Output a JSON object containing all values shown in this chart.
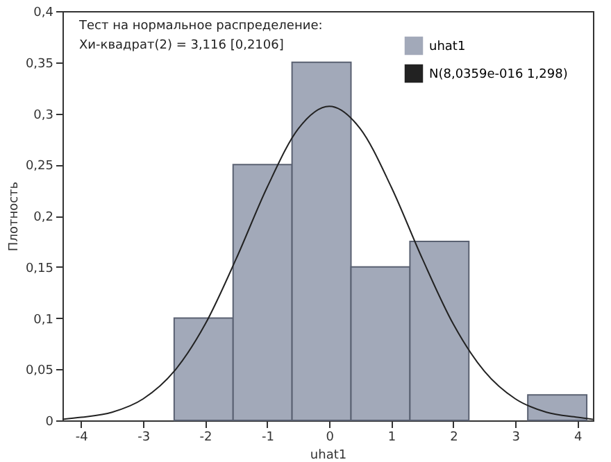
{
  "chart_data": {
    "type": "histogram",
    "xlabel": "uhat1",
    "ylabel": "Плотность",
    "annotations": [
      "Тест на нормальное распределение:",
      "Хи-квадрат(2) = 3,116 [0,2106]"
    ],
    "bins": [
      -2.5,
      -1.55,
      -0.6,
      0.35,
      1.3,
      2.25,
      3.2,
      4.15
    ],
    "series": [
      {
        "name": "uhat1",
        "type": "histogram",
        "color": "#a2a9b9",
        "values": [
          0.1,
          0.25,
          0.35,
          0.15,
          0.175,
          0,
          0.025
        ]
      },
      {
        "name": "N(8,0359e-016 1,298)",
        "type": "line",
        "color": "#222222",
        "marker": "none",
        "x": [
          -4.3,
          -4,
          -3.5,
          -3,
          -2.5,
          -2,
          -1.5,
          -1,
          -0.5,
          0,
          0.5,
          1,
          1.5,
          2,
          2.5,
          3,
          3.5,
          4,
          4.25
        ],
        "values": [
          0.001,
          0.003,
          0.008,
          0.021,
          0.048,
          0.094,
          0.158,
          0.228,
          0.285,
          0.307,
          0.285,
          0.228,
          0.158,
          0.094,
          0.048,
          0.021,
          0.008,
          0.003,
          0.001
        ]
      }
    ],
    "xlim": [
      -4.3,
      4.25
    ],
    "xticks": [
      -4,
      -3,
      -2,
      -1,
      0,
      1,
      2,
      3,
      4
    ],
    "ylim": [
      0,
      0.4
    ],
    "yticks": [
      0,
      {
        "value": 0.05,
        "label": "0,05"
      },
      {
        "value": 0.1,
        "label": "0,1"
      },
      {
        "value": 0.15,
        "label": "0,15"
      },
      {
        "value": 0.2,
        "label": "0,2"
      },
      {
        "value": 0.25,
        "label": "0,25"
      },
      {
        "value": 0.3,
        "label": "0,3"
      },
      {
        "value": 0.35,
        "label": "0,35"
      },
      {
        "value": 0.4,
        "label": "0,4"
      }
    ],
    "grid": false,
    "legend": "top right"
  }
}
